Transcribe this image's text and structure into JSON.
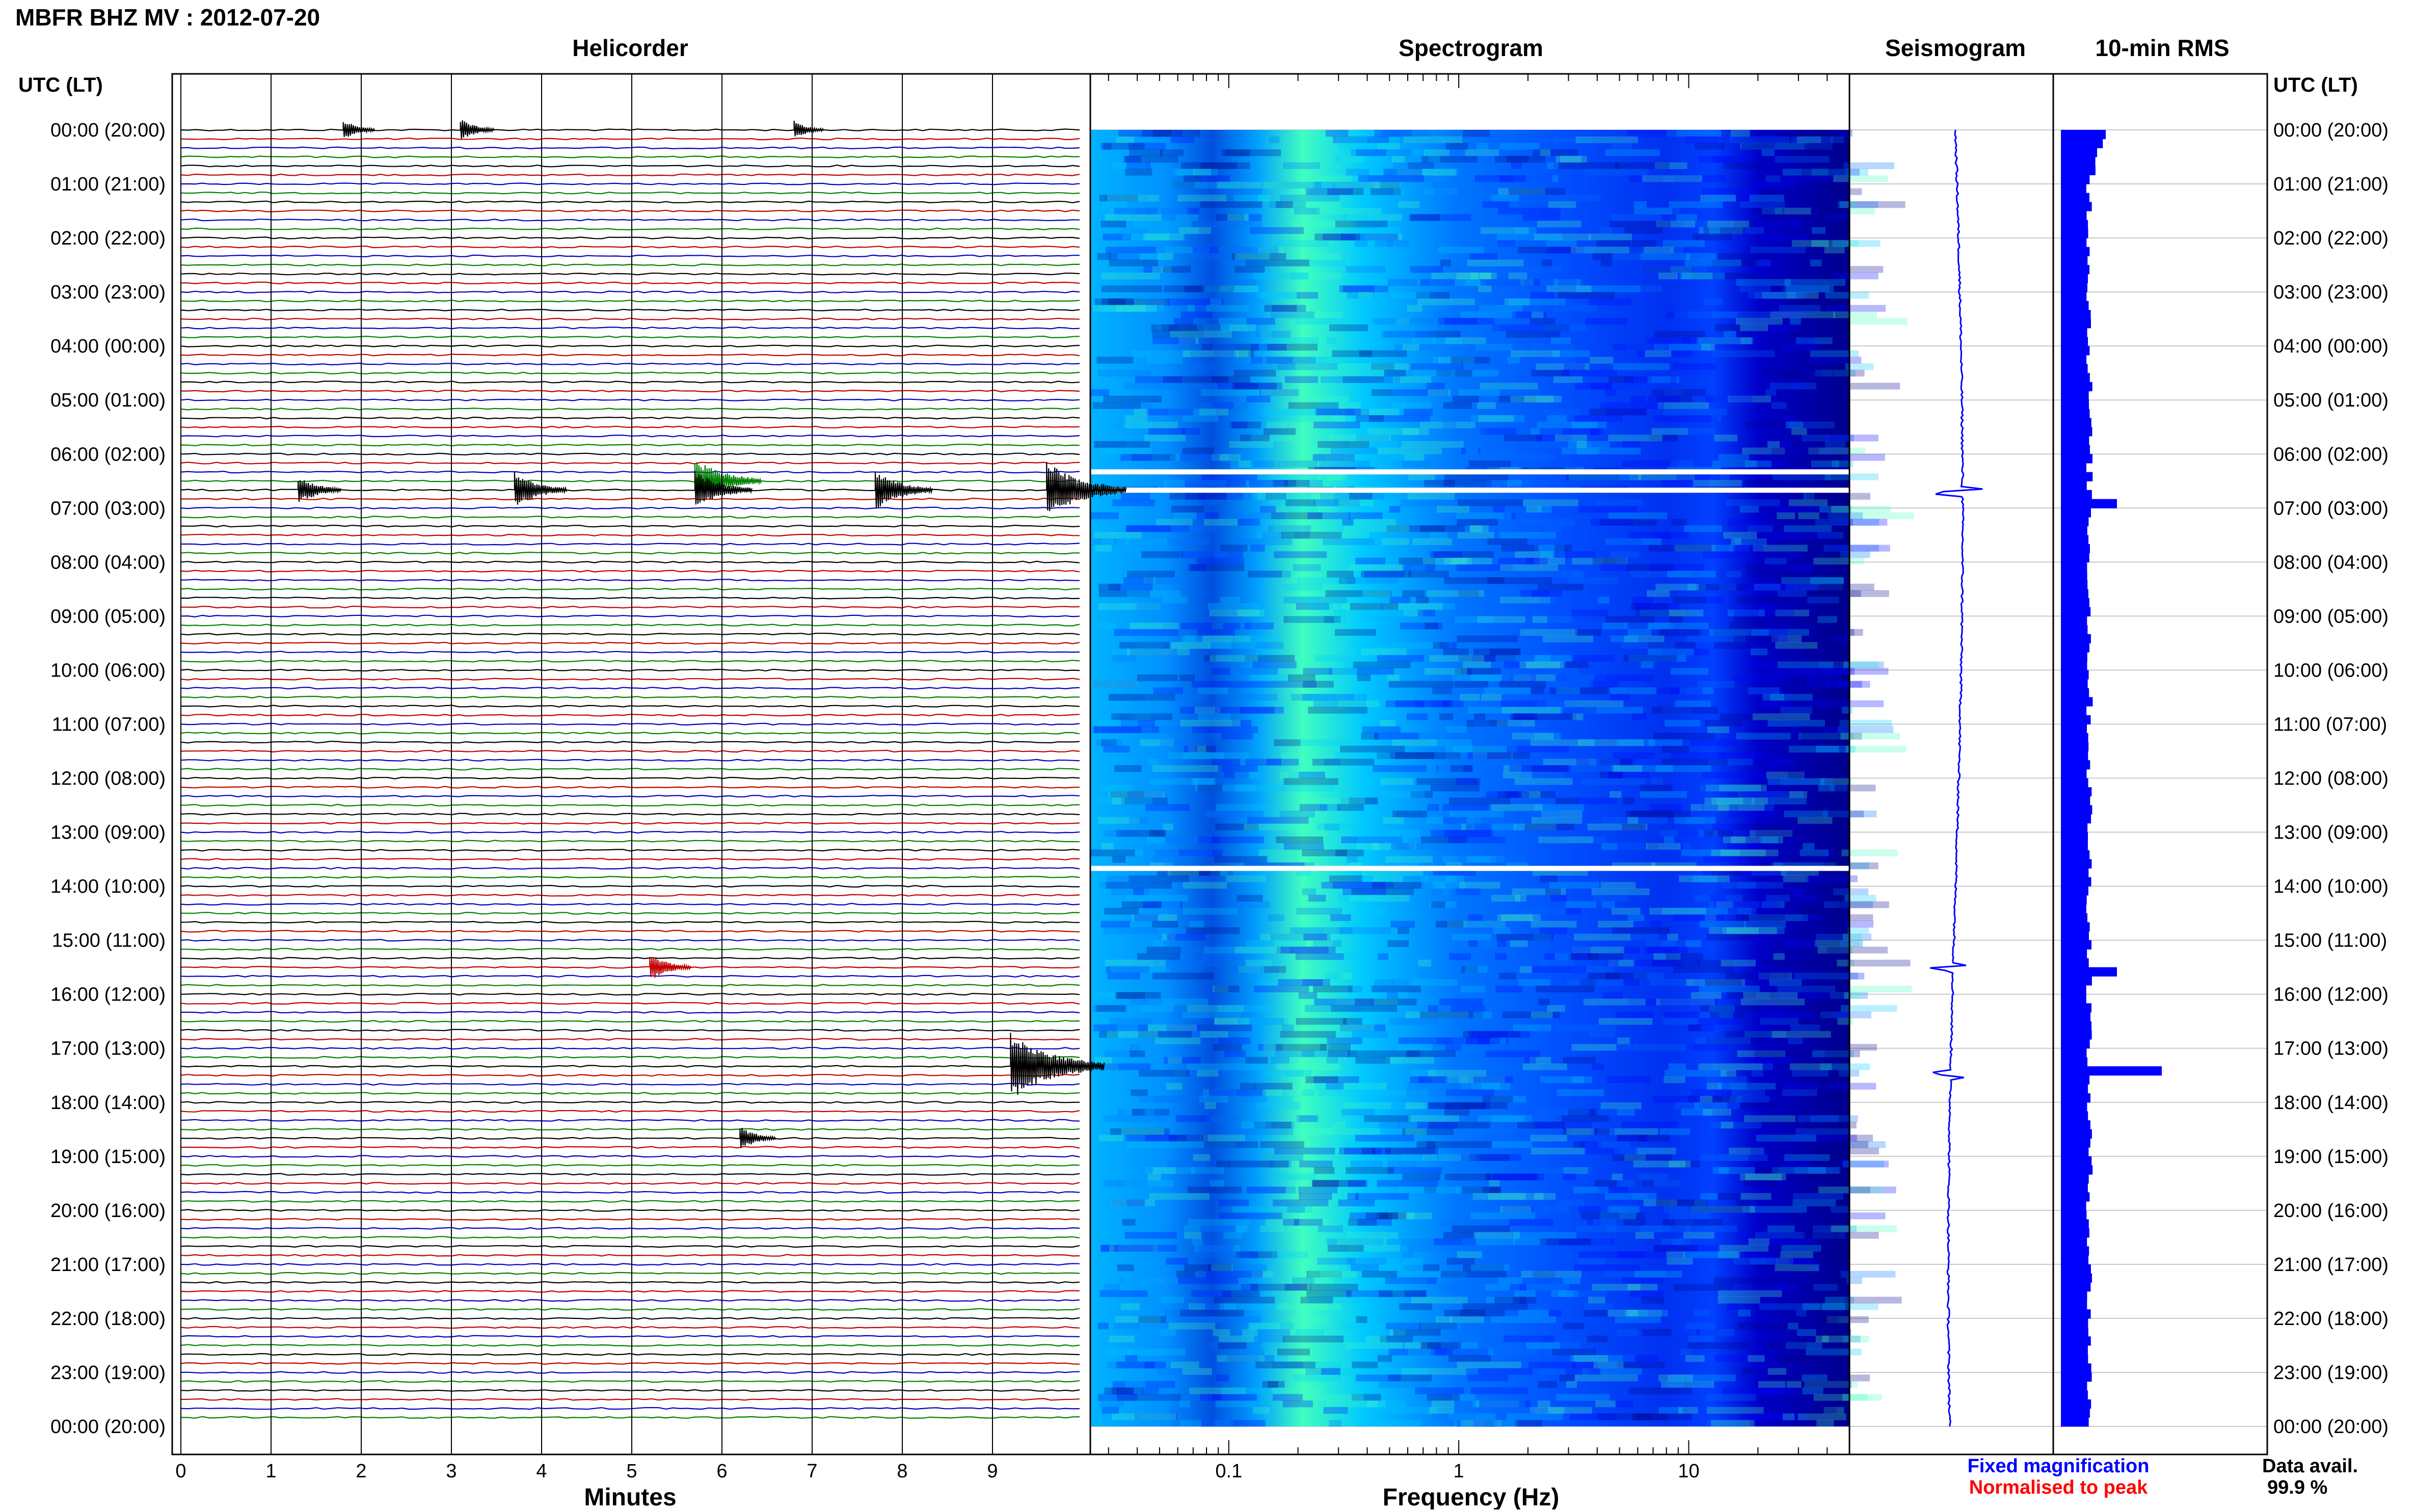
{
  "header": {
    "title": "MBFR BHZ MV : 2012-07-20"
  },
  "panels": {
    "helicorder_title": "Helicorder",
    "spectrogram_title": "Spectrogram",
    "seismogram_title": "Seismogram",
    "rms_title": "10-min RMS"
  },
  "axes": {
    "left_time_label": "UTC (LT)",
    "right_time_label": "UTC (LT)",
    "minutes_label": "Minutes",
    "frequency_label": "Frequency (Hz)"
  },
  "legend": {
    "fixed": "Fixed magnification",
    "normalised": "Normalised to peak",
    "fixed_color": "#0000ff",
    "normalised_color": "#ff0000"
  },
  "availability": {
    "label": "Data avail.",
    "value": "99.9 %"
  },
  "chart_data": [
    {
      "type": "line",
      "name": "helicorder",
      "title": "Helicorder",
      "xlabel": "Minutes",
      "ylabel": "UTC (LT)",
      "xlim": [
        0,
        10
      ],
      "x_ticks": [
        0,
        1,
        2,
        3,
        4,
        5,
        6,
        7,
        8,
        9
      ],
      "y_ticks": [
        "00:00 (20:00)",
        "01:00 (21:00)",
        "02:00 (22:00)",
        "03:00 (23:00)",
        "04:00 (00:00)",
        "05:00 (01:00)",
        "06:00 (02:00)",
        "07:00 (03:00)",
        "08:00 (04:00)",
        "09:00 (05:00)",
        "10:00 (06:00)",
        "11:00 (07:00)",
        "12:00 (08:00)",
        "13:00 (09:00)",
        "14:00 (10:00)",
        "15:00 (11:00)",
        "16:00 (12:00)",
        "17:00 (13:00)",
        "18:00 (14:00)",
        "19:00 (15:00)",
        "20:00 (16:00)",
        "21:00 (17:00)",
        "22:00 (18:00)",
        "23:00 (19:00)",
        "00:00 (20:00)"
      ],
      "trace_colors": [
        "#000000",
        "#c00000",
        "#0000c8",
        "#008000"
      ],
      "events": [
        {
          "hour": 0.0,
          "minute": 1.8,
          "amp": 0.25
        },
        {
          "hour": 0.0,
          "minute": 3.1,
          "amp": 0.3
        },
        {
          "hour": 0.0,
          "minute": 6.8,
          "amp": 0.2
        },
        {
          "hour": 6.5,
          "minute": 5.7,
          "amp": 1.0
        },
        {
          "hour": 6.67,
          "minute": 1.3,
          "amp": 0.5
        },
        {
          "hour": 6.67,
          "minute": 3.7,
          "amp": 0.7
        },
        {
          "hour": 6.67,
          "minute": 5.7,
          "amp": 0.8
        },
        {
          "hour": 6.67,
          "minute": 7.7,
          "amp": 0.8
        },
        {
          "hour": 6.67,
          "minute": 9.6,
          "amp": 1.3
        },
        {
          "hour": 15.5,
          "minute": 5.2,
          "amp": 0.45
        },
        {
          "hour": 17.33,
          "minute": 9.2,
          "amp": 1.6
        },
        {
          "hour": 18.67,
          "minute": 6.2,
          "amp": 0.35
        }
      ]
    },
    {
      "type": "heatmap",
      "name": "spectrogram",
      "title": "Spectrogram",
      "xlabel": "Frequency (Hz)",
      "x_scale": "log",
      "xlim": [
        0.025,
        50
      ],
      "x_ticks": [
        0.1,
        1,
        10
      ],
      "colormap": [
        "#00008c",
        "#0000ff",
        "#0070ff",
        "#00c8ff",
        "#40ffc0"
      ],
      "gaps_hours": [
        6.33,
        6.67,
        13.67
      ]
    },
    {
      "type": "line",
      "name": "seismogram",
      "title": "Seismogram",
      "events_hours": [
        6.67,
        15.5,
        17.5
      ]
    },
    {
      "type": "bar",
      "name": "rms",
      "title": "10-min RMS",
      "bar_color": "#0000ff",
      "peaks": [
        {
          "hour": 0.0,
          "value": 0.8
        },
        {
          "hour": 6.83,
          "value": 1.0
        },
        {
          "hour": 15.5,
          "value": 1.0
        },
        {
          "hour": 17.4,
          "value": 1.8
        }
      ]
    }
  ]
}
